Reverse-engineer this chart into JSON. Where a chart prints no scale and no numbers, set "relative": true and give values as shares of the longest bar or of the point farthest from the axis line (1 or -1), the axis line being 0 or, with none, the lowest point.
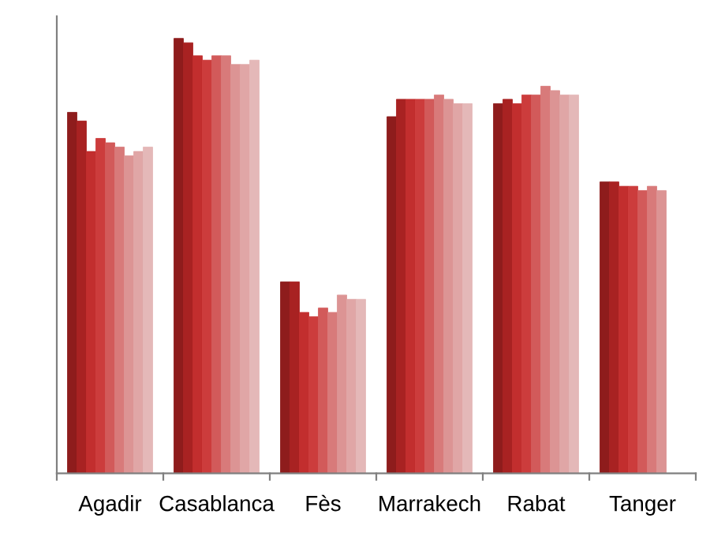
{
  "chart_data": {
    "type": "bar",
    "relative": true,
    "categories": [
      "Agadir",
      "Casablanca",
      "Fès",
      "Marrakech",
      "Rabat",
      "Tanger"
    ],
    "series": [
      {
        "color": "#8e1c1c",
        "values": [
          0.83,
          1.0,
          0.44,
          0.82,
          0.85,
          0.67
        ]
      },
      {
        "color": "#a82222",
        "values": [
          0.81,
          0.99,
          0.44,
          0.86,
          0.86,
          0.67
        ]
      },
      {
        "color": "#c22e2e",
        "values": [
          0.74,
          0.96,
          0.37,
          0.86,
          0.85,
          0.66
        ]
      },
      {
        "color": "#cc3c3c",
        "values": [
          0.77,
          0.95,
          0.36,
          0.86,
          0.87,
          0.66
        ]
      },
      {
        "color": "#d25a5a",
        "values": [
          0.76,
          0.96,
          0.38,
          0.86,
          0.87,
          0.65
        ]
      },
      {
        "color": "#d87a7a",
        "values": [
          0.75,
          0.96,
          0.37,
          0.87,
          0.89,
          0.66
        ]
      },
      {
        "color": "#dc9494",
        "values": [
          0.73,
          0.94,
          0.41,
          0.86,
          0.88,
          0.65
        ]
      },
      {
        "color": "#e0a6a6",
        "values": [
          0.74,
          0.94,
          0.4,
          0.85,
          0.87,
          null
        ]
      },
      {
        "color": "#e4b8b8",
        "values": [
          0.75,
          0.95,
          0.4,
          0.85,
          0.87,
          null
        ]
      }
    ]
  }
}
